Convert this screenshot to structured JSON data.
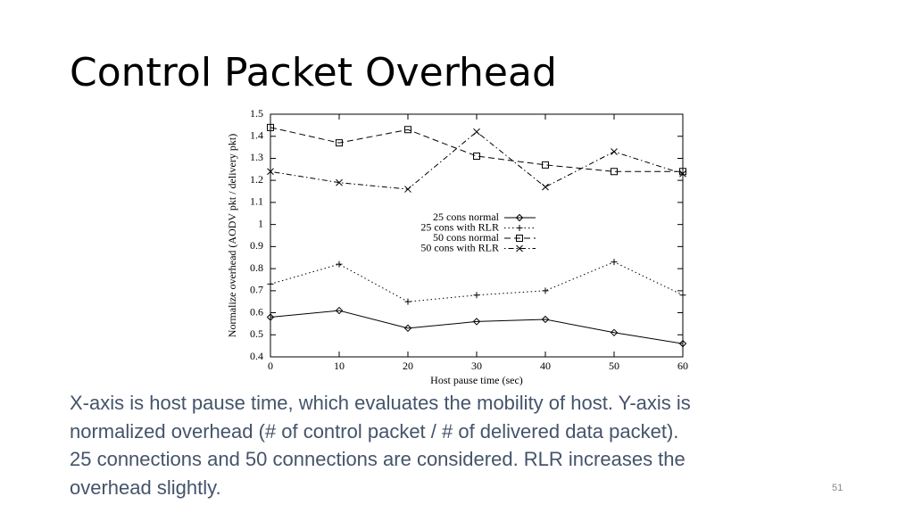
{
  "title": "Control Packet Overhead",
  "chart_data": {
    "type": "line",
    "x_label": "Host pause time (sec)",
    "y_label": "Normalize overhead (AODV pkt / delivery pkt)",
    "x": [
      0,
      10,
      20,
      30,
      40,
      50,
      60
    ],
    "series": [
      {
        "name": "25 cons normal",
        "color": "#000000",
        "marker": "diamond",
        "dash": "solid",
        "values": [
          0.58,
          0.61,
          0.53,
          0.56,
          0.57,
          0.51,
          0.46
        ]
      },
      {
        "name": "25 cons with RLR",
        "color": "#000000",
        "marker": "plus",
        "dash": "dotted",
        "values": [
          0.73,
          0.82,
          0.65,
          0.68,
          0.7,
          0.83,
          0.68
        ]
      },
      {
        "name": "50 cons normal",
        "color": "#000000",
        "marker": "square",
        "dash": "dashed",
        "values": [
          1.44,
          1.37,
          1.43,
          1.31,
          1.27,
          1.24,
          1.24
        ]
      },
      {
        "name": "50 cons with RLR",
        "color": "#000000",
        "marker": "cross",
        "dash": "dashdot",
        "values": [
          1.24,
          1.19,
          1.16,
          1.42,
          1.17,
          1.33,
          1.23
        ]
      }
    ],
    "xlim": [
      0,
      60
    ],
    "xticks": [
      0,
      10,
      20,
      30,
      40,
      50,
      60
    ],
    "ylim": [
      0.4,
      1.5
    ],
    "yticks": [
      0.4,
      0.5,
      0.6,
      0.7,
      0.8,
      0.9,
      1,
      1.1,
      1.2,
      1.3,
      1.4,
      1.5
    ],
    "legend": "center"
  },
  "body_lines": [
    "X-axis is host pause time, which evaluates the mobility of host. Y-axis is",
    "normalized overhead (# of control packet / # of delivered data packet).",
    "25 connections and 50 connections are considered. RLR increases the",
    "overhead slightly."
  ],
  "page_number": "51"
}
